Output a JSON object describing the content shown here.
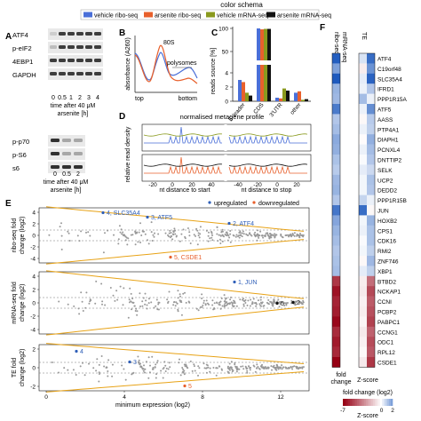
{
  "color_schema": {
    "title": "color schema",
    "entries": [
      {
        "label": "vehicle ribo-seq",
        "color": "#4a6fd8"
      },
      {
        "label": "arsenite ribo-seq",
        "color": "#e8602c"
      },
      {
        "label": "vehicle mRNA-seq",
        "color": "#8a9a1e"
      },
      {
        "label": "arsenite mRNA-seq",
        "color": "#111111"
      }
    ]
  },
  "panelA": {
    "letter": "A",
    "blot_labels": [
      "ATF4",
      "p-eIF2",
      "4EBP1",
      "GAPDH"
    ],
    "lanes": [
      "0",
      "0.5",
      "1",
      "2",
      "3",
      "4"
    ],
    "xlabel_line1": "time after 40 μM",
    "xlabel_line2": "arsenite [h]",
    "blot2_labels": [
      "p-p70",
      "p-S6",
      "s6"
    ],
    "lanes2": [
      "0",
      "0.5",
      "2"
    ],
    "x2label_line1": "time after 40 μM",
    "x2label_line2": "arsenite [h]"
  },
  "panelB": {
    "letter": "B",
    "ylabel": "absorbance (A260)",
    "label_80s": "80S",
    "label_polysomes": "polysomes",
    "xtick_left": "top",
    "xtick_right": "bottom"
  },
  "panelC": {
    "letter": "C",
    "ylabel": "reads source [%]",
    "yticks": [
      "0",
      "2",
      "4",
      "50",
      "100"
    ],
    "categories": [
      "5' leader",
      "CDS",
      "3'UTR",
      "other"
    ]
  },
  "panelD": {
    "letter": "D",
    "title": "normalised metagene profile",
    "ylabel": "relative read density",
    "xticks_start": [
      "-20",
      "0",
      "20",
      "40"
    ],
    "xticks_stop": [
      "-40",
      "-20",
      "0",
      "20"
    ],
    "xlabel_start": "nt distance to start",
    "xlabel_stop": "nt distance to stop"
  },
  "panelE": {
    "letter": "E",
    "legend_up": "upregulated",
    "legend_down": "downregulated",
    "xticks": [
      "0",
      "4",
      "8",
      "12"
    ],
    "xlabel": "minimum expression (log2)",
    "rows": [
      {
        "ylabel_line1": "ribo-seq fold",
        "ylabel_line2": "change (log2)",
        "yticks": [
          "4",
          "2",
          "0",
          "-2",
          "-4"
        ],
        "labels": [
          {
            "text": "4, SLC35A4",
            "color": "#2f5fb8"
          },
          {
            "text": "3, ATF5",
            "color": "#2f5fb8"
          },
          {
            "text": "2, ATF4",
            "color": "#2f5fb8"
          },
          {
            "text": "5, CSDE1",
            "color": "#e8602c"
          }
        ]
      },
      {
        "ylabel_line1": "mRNA-seq fold",
        "ylabel_line2": "change (log2)",
        "yticks": [
          "4",
          "2",
          "0",
          "-2",
          "-4"
        ],
        "labels": [
          {
            "text": "1, JUN",
            "color": "#2f5fb8"
          },
          {
            "text": "5",
            "color": "#111111"
          },
          {
            "text": "2",
            "color": "#111111"
          }
        ]
      },
      {
        "ylabel_line1": "TE fold",
        "ylabel_line2": "change (log2)",
        "yticks": [
          "2",
          "0",
          "-2"
        ],
        "labels": [
          {
            "text": "4",
            "color": "#2f5fb8"
          },
          {
            "text": "3",
            "color": "#2f5fb8"
          },
          {
            "text": "5",
            "color": "#e8602c"
          }
        ]
      }
    ]
  },
  "panelF": {
    "letter": "F",
    "col_headers": [
      "ribo-seq",
      "mRNA-seq",
      "TE"
    ],
    "genes": [
      "ATF4",
      "C19orf48",
      "SLC35A4",
      "IFRD1",
      "PPP1R15A",
      "ATF5",
      "AASS",
      "PTP4A1",
      "DIAPH1",
      "PCNXL4",
      "DNTTIP2",
      "SELK",
      "UCP2",
      "DEDD2",
      "PPP1R15B",
      "JUN",
      "HOXB2",
      "CPS1",
      "CDK16",
      "RMI2",
      "ZNF746",
      "XBP1",
      "BTBD2",
      "NCKAP1",
      "CCNI",
      "PCBP2",
      "PABPC1",
      "CCNG1",
      "ODC1",
      "RPL12",
      "CSDE1"
    ],
    "fold_change_log2": [
      [
        3.4,
        0.6,
        3.1
      ],
      [
        2.0,
        -0.5,
        2.3
      ],
      [
        3.8,
        0.4,
        3.3
      ],
      [
        1.6,
        0.3,
        1.2
      ],
      [
        1.5,
        1.4,
        0.3
      ],
      [
        2.8,
        0.3,
        2.4
      ],
      [
        1.2,
        -0.2,
        1.1
      ],
      [
        1.4,
        0.3,
        1.0
      ],
      [
        1.8,
        -0.1,
        1.7
      ],
      [
        1.7,
        0.3,
        1.4
      ],
      [
        1.3,
        0.1,
        1.2
      ],
      [
        1.1,
        0.4,
        0.8
      ],
      [
        1.5,
        0.2,
        1.3
      ],
      [
        1.6,
        0.2,
        1.2
      ],
      [
        1.2,
        0.9,
        0.3
      ],
      [
        2.9,
        3.1,
        -0.2
      ],
      [
        1.9,
        0.2,
        1.6
      ],
      [
        1.6,
        0.3,
        1.3
      ],
      [
        1.4,
        0.1,
        1.3
      ],
      [
        1.2,
        0.2,
        1.0
      ],
      [
        1.3,
        -0.2,
        1.5
      ],
      [
        1.4,
        0.4,
        1.0
      ],
      [
        -5.5,
        -0.5,
        -4.0
      ],
      [
        -6.5,
        -0.6,
        -5.0
      ],
      [
        -6.0,
        -0.4,
        -4.5
      ],
      [
        -6.2,
        -0.5,
        -4.8
      ],
      [
        -6.8,
        -0.3,
        -5.2
      ],
      [
        -5.8,
        -0.6,
        -4.3
      ],
      [
        -6.3,
        -0.4,
        -4.9
      ],
      [
        -5.9,
        -0.2,
        -4.6
      ],
      [
        -7.0,
        -0.6,
        -5.5
      ]
    ],
    "bottom_label_1": "fold",
    "bottom_label_2": "change",
    "bottom_label_3": "Z-score",
    "colorbar_title": "fold change (log2)",
    "colorbar_ticks": [
      "-7",
      "0",
      "2"
    ],
    "colorbar_xlabel": "Z-score"
  }
}
